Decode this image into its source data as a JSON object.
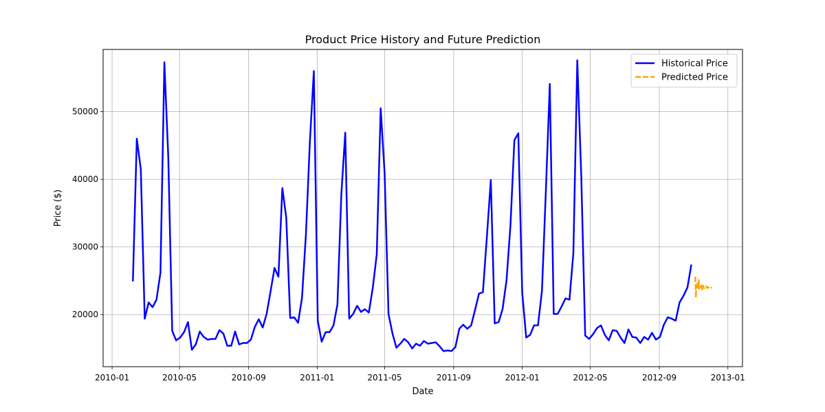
{
  "chart_data": {
    "type": "line",
    "title": "Product Price History and Future Prediction",
    "xlabel": "Date",
    "ylabel": "Price ($)",
    "grid": true,
    "legend_position": "top-right",
    "x_ticks": [
      "2010-01",
      "2010-05",
      "2010-09",
      "2011-01",
      "2011-05",
      "2011-09",
      "2012-01",
      "2012-05",
      "2012-09",
      "2013-01"
    ],
    "y_ticks": [
      20000,
      30000,
      40000,
      50000
    ],
    "xlim": [
      "2009-12-16",
      "2013-01-27"
    ],
    "ylim": [
      12300,
      59200
    ],
    "series": [
      {
        "name": "Historical Price",
        "color": "#0000ff",
        "dash": "solid",
        "x": [
          "2010-02-07",
          "2010-02-14",
          "2010-02-21",
          "2010-02-28",
          "2010-03-07",
          "2010-03-14",
          "2010-03-21",
          "2010-03-28",
          "2010-04-04",
          "2010-04-11",
          "2010-04-18",
          "2010-04-25",
          "2010-05-02",
          "2010-05-09",
          "2010-05-16",
          "2010-05-23",
          "2010-05-30",
          "2010-06-06",
          "2010-06-13",
          "2010-06-20",
          "2010-06-27",
          "2010-07-04",
          "2010-07-11",
          "2010-07-18",
          "2010-07-25",
          "2010-08-01",
          "2010-08-08",
          "2010-08-15",
          "2010-08-22",
          "2010-08-29",
          "2010-09-05",
          "2010-09-12",
          "2010-09-19",
          "2010-09-26",
          "2010-10-03",
          "2010-10-10",
          "2010-10-17",
          "2010-10-24",
          "2010-10-31",
          "2010-11-07",
          "2010-11-14",
          "2010-11-21",
          "2010-11-28",
          "2010-12-05",
          "2010-12-12",
          "2010-12-19",
          "2010-12-26",
          "2011-01-02",
          "2011-01-09",
          "2011-01-16",
          "2011-01-23",
          "2011-01-30",
          "2011-02-06",
          "2011-02-13",
          "2011-02-20",
          "2011-02-27",
          "2011-03-06",
          "2011-03-13",
          "2011-03-20",
          "2011-03-27",
          "2011-04-03",
          "2011-04-10",
          "2011-04-17",
          "2011-04-24",
          "2011-05-01",
          "2011-05-08",
          "2011-05-15",
          "2011-05-22",
          "2011-05-29",
          "2011-06-05",
          "2011-06-12",
          "2011-06-19",
          "2011-06-26",
          "2011-07-03",
          "2011-07-10",
          "2011-07-17",
          "2011-07-24",
          "2011-07-31",
          "2011-08-07",
          "2011-08-14",
          "2011-08-21",
          "2011-08-28",
          "2011-09-04",
          "2011-09-11",
          "2011-09-18",
          "2011-09-25",
          "2011-10-02",
          "2011-10-09",
          "2011-10-16",
          "2011-10-23",
          "2011-10-30",
          "2011-11-06",
          "2011-11-13",
          "2011-11-20",
          "2011-11-27",
          "2011-12-04",
          "2011-12-11",
          "2011-12-18",
          "2011-12-25",
          "2012-01-01",
          "2012-01-08",
          "2012-01-15",
          "2012-01-22",
          "2012-01-29",
          "2012-02-05",
          "2012-02-12",
          "2012-02-19",
          "2012-02-26",
          "2012-03-04",
          "2012-03-11",
          "2012-03-18",
          "2012-03-25",
          "2012-04-01",
          "2012-04-08",
          "2012-04-15",
          "2012-04-22",
          "2012-04-29",
          "2012-05-06",
          "2012-05-13",
          "2012-05-20",
          "2012-05-27",
          "2012-06-03",
          "2012-06-10",
          "2012-06-17",
          "2012-06-24",
          "2012-07-01",
          "2012-07-08",
          "2012-07-15",
          "2012-07-22",
          "2012-07-29",
          "2012-08-05",
          "2012-08-12",
          "2012-08-19",
          "2012-08-26",
          "2012-09-02",
          "2012-09-09",
          "2012-09-16",
          "2012-09-23",
          "2012-09-30",
          "2012-10-07",
          "2012-10-14",
          "2012-10-21",
          "2012-10-28"
        ],
        "y": [
          24900,
          46000,
          41500,
          19400,
          21800,
          21100,
          22200,
          26200,
          57300,
          43200,
          17600,
          16200,
          16600,
          17400,
          18900,
          14800,
          15600,
          17500,
          16700,
          16300,
          16400,
          16400,
          17700,
          17200,
          15400,
          15400,
          17500,
          15600,
          15800,
          15800,
          16300,
          18200,
          19300,
          18100,
          20100,
          23400,
          26900,
          25600,
          38700,
          34300,
          19500,
          19600,
          18800,
          22500,
          31900,
          45500,
          56000,
          19100,
          16000,
          17400,
          17400,
          18400,
          21500,
          37800,
          46900,
          19400,
          20100,
          21300,
          20400,
          20800,
          20300,
          24000,
          28900,
          50500,
          41000,
          20100,
          17200,
          15100,
          15700,
          16400,
          15900,
          15000,
          15700,
          15400,
          16100,
          15700,
          15800,
          15900,
          15300,
          14600,
          14700,
          14600,
          15200,
          17900,
          18500,
          17900,
          18400,
          20700,
          23100,
          23300,
          31500,
          39900,
          18700,
          18900,
          20800,
          25100,
          33200,
          45800,
          46800,
          23200,
          16600,
          17000,
          18400,
          18400,
          23500,
          38300,
          54100,
          20100,
          20100,
          21200,
          22400,
          22200,
          29100,
          57600,
          40400,
          16900,
          16400,
          17100,
          18000,
          18400,
          17000,
          16200,
          17700,
          17600,
          16600,
          15800,
          17800,
          16700,
          16600,
          15800,
          16700,
          16300,
          17300,
          16300,
          16700,
          18500,
          19600,
          19400,
          19100,
          21800,
          22800,
          24000,
          27400
        ]
      },
      {
        "name": "Predicted Price",
        "color": "#ffa500",
        "dash": "dashed",
        "x": [
          "2012-11-04",
          "2012-11-05",
          "2012-11-06",
          "2012-11-07",
          "2012-11-08",
          "2012-11-09",
          "2012-11-10",
          "2012-11-11",
          "2012-11-12",
          "2012-11-13",
          "2012-11-14",
          "2012-11-15",
          "2012-11-16",
          "2012-11-17",
          "2012-11-18",
          "2012-11-19",
          "2012-11-20",
          "2012-11-21",
          "2012-11-22",
          "2012-11-23",
          "2012-11-24",
          "2012-11-25",
          "2012-11-26",
          "2012-11-27",
          "2012-11-28",
          "2012-11-29",
          "2012-11-30",
          "2012-12-01",
          "2012-12-02",
          "2012-12-03"
        ],
        "y": [
          25600,
          22500,
          24400,
          24200,
          24600,
          23700,
          25100,
          23800,
          24100,
          24200,
          24000,
          24300,
          23700,
          23800,
          24300,
          23900,
          23900,
          24000,
          24100,
          24200,
          24000,
          23900,
          24000,
          24100,
          24000,
          24000,
          23900,
          24000,
          24000,
          23900
        ]
      }
    ]
  }
}
